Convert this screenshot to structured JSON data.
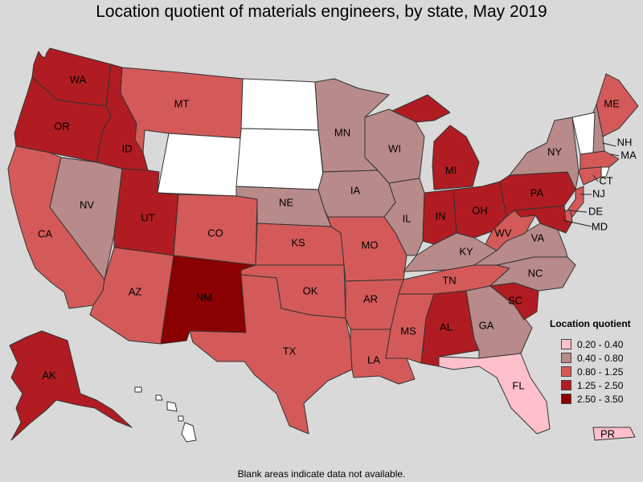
{
  "title": "Location quotient of materials engineers, by state, May 2019",
  "footnote": "Blank areas indicate data not available.",
  "legend": {
    "title": "Location quotient",
    "items": [
      {
        "range": "0.20 - 0.40",
        "color": "#ffc0cb"
      },
      {
        "range": "0.40 - 0.80",
        "color": "#b88a8a"
      },
      {
        "range": "0.80 - 1.25",
        "color": "#d45a5a"
      },
      {
        "range": "1.25 - 2.50",
        "color": "#b01c22"
      },
      {
        "range": "2.50 - 3.50",
        "color": "#8b0000"
      }
    ]
  },
  "no_data_color": "#ffffff",
  "states": {
    "WA": {
      "label": "WA",
      "class": "1.25 - 2.50"
    },
    "OR": {
      "label": "OR",
      "class": "1.25 - 2.50"
    },
    "CA": {
      "label": "CA",
      "class": "0.80 - 1.25"
    },
    "ID": {
      "label": "ID",
      "class": "1.25 - 2.50"
    },
    "NV": {
      "label": "NV",
      "class": "0.40 - 0.80"
    },
    "MT": {
      "label": "MT",
      "class": "0.80 - 1.25"
    },
    "WY": {
      "label": "",
      "class": null
    },
    "UT": {
      "label": "UT",
      "class": "1.25 - 2.50"
    },
    "AZ": {
      "label": "AZ",
      "class": "0.80 - 1.25"
    },
    "CO": {
      "label": "CO",
      "class": "0.80 - 1.25"
    },
    "NM": {
      "label": "NM",
      "class": "2.50 - 3.50"
    },
    "ND": {
      "label": "",
      "class": null
    },
    "SD": {
      "label": "",
      "class": null
    },
    "NE": {
      "label": "NE",
      "class": "0.40 - 0.80"
    },
    "KS": {
      "label": "KS",
      "class": "0.80 - 1.25"
    },
    "OK": {
      "label": "OK",
      "class": "0.80 - 1.25"
    },
    "TX": {
      "label": "TX",
      "class": "0.80 - 1.25"
    },
    "MN": {
      "label": "MN",
      "class": "0.40 - 0.80"
    },
    "IA": {
      "label": "IA",
      "class": "0.40 - 0.80"
    },
    "MO": {
      "label": "MO",
      "class": "0.80 - 1.25"
    },
    "AR": {
      "label": "AR",
      "class": "0.80 - 1.25"
    },
    "LA": {
      "label": "LA",
      "class": "0.80 - 1.25"
    },
    "WI": {
      "label": "WI",
      "class": "0.40 - 0.80"
    },
    "IL": {
      "label": "IL",
      "class": "0.40 - 0.80"
    },
    "MI": {
      "label": "MI",
      "class": "1.25 - 2.50"
    },
    "IN": {
      "label": "IN",
      "class": "1.25 - 2.50"
    },
    "OH": {
      "label": "OH",
      "class": "1.25 - 2.50"
    },
    "KY": {
      "label": "KY",
      "class": "0.40 - 0.80"
    },
    "TN": {
      "label": "TN",
      "class": "0.80 - 1.25"
    },
    "MS": {
      "label": "MS",
      "class": "0.80 - 1.25"
    },
    "AL": {
      "label": "AL",
      "class": "1.25 - 2.50"
    },
    "GA": {
      "label": "GA",
      "class": "0.40 - 0.80"
    },
    "FL": {
      "label": "FL",
      "class": "0.20 - 0.40"
    },
    "SC": {
      "label": "SC",
      "class": "1.25 - 2.50"
    },
    "NC": {
      "label": "NC",
      "class": "0.40 - 0.80"
    },
    "VA": {
      "label": "VA",
      "class": "0.40 - 0.80"
    },
    "WV": {
      "label": "WV",
      "class": "0.80 - 1.25"
    },
    "PA": {
      "label": "PA",
      "class": "1.25 - 2.50"
    },
    "NY": {
      "label": "NY",
      "class": "0.40 - 0.80"
    },
    "ME": {
      "label": "ME",
      "class": "0.80 - 1.25"
    },
    "NH": {
      "label": "NH",
      "class": "0.40 - 0.80"
    },
    "VT": {
      "label": "",
      "class": null
    },
    "MA": {
      "label": "MA",
      "class": "0.80 - 1.25"
    },
    "RI": {
      "label": "",
      "class": null
    },
    "CT": {
      "label": "CT",
      "class": "0.80 - 1.25"
    },
    "NJ": {
      "label": "NJ",
      "class": "0.80 - 1.25"
    },
    "DE": {
      "label": "DE",
      "class": "0.80 - 1.25"
    },
    "MD": {
      "label": "MD",
      "class": "1.25 - 2.50"
    },
    "AK": {
      "label": "AK",
      "class": "1.25 - 2.50"
    },
    "HI": {
      "label": "",
      "class": null
    },
    "PR": {
      "label": "PR",
      "class": "0.20 - 0.40"
    }
  }
}
